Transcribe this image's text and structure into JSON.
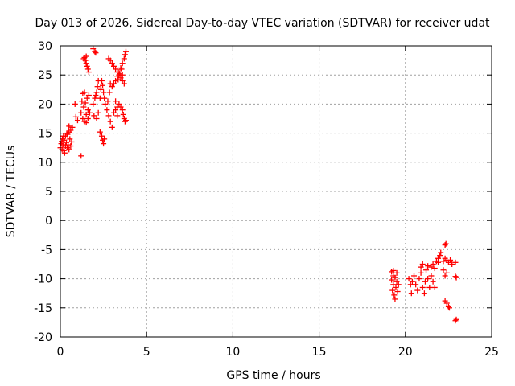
{
  "chart_data": {
    "type": "scatter",
    "title": "Day 013 of 2026, Sidereal Day-to-day VTEC variation (SDTVAR) for receiver udat",
    "xlabel": "GPS time / hours",
    "ylabel": "SDTVAR / TECUs",
    "xlim": [
      0,
      25
    ],
    "ylim": [
      -20,
      30
    ],
    "xticks": [
      "0",
      "5",
      "10",
      "15",
      "20",
      "25"
    ],
    "yticks": [
      "30",
      "25",
      "20",
      "15",
      "10",
      "5",
      "0",
      "-5",
      "-10",
      "-15",
      "-20"
    ],
    "grid": true,
    "marker": "plus",
    "color": "#ff0000",
    "series": [
      {
        "name": "SDTVAR",
        "points": [
          [
            0.0,
            12.5
          ],
          [
            0.05,
            13.2
          ],
          [
            0.1,
            12.2
          ],
          [
            0.12,
            14.0
          ],
          [
            0.15,
            13.0
          ],
          [
            0.2,
            12.0
          ],
          [
            0.22,
            13.8
          ],
          [
            0.25,
            11.6
          ],
          [
            0.3,
            12.8
          ],
          [
            0.3,
            14.5
          ],
          [
            0.35,
            13.4
          ],
          [
            0.4,
            12.5
          ],
          [
            0.42,
            14.8
          ],
          [
            0.45,
            13.0
          ],
          [
            0.5,
            15.2
          ],
          [
            0.5,
            12.2
          ],
          [
            0.55,
            14.0
          ],
          [
            0.6,
            15.5
          ],
          [
            0.6,
            12.8
          ],
          [
            0.65,
            13.5
          ],
          [
            0.7,
            16.0
          ],
          [
            0.5,
            16.2
          ],
          [
            0.38,
            15.0
          ],
          [
            0.18,
            14.5
          ],
          [
            0.08,
            13.6
          ],
          [
            0.85,
            20.0
          ],
          [
            0.9,
            17.8
          ],
          [
            1.0,
            17.2
          ],
          [
            1.2,
            11.1
          ],
          [
            1.2,
            18.5
          ],
          [
            1.3,
            17.5
          ],
          [
            1.35,
            19.5
          ],
          [
            1.4,
            17.0
          ],
          [
            1.45,
            20.2
          ],
          [
            1.5,
            18.2
          ],
          [
            1.55,
            21.0
          ],
          [
            1.6,
            19.0
          ],
          [
            1.65,
            21.5
          ],
          [
            1.3,
            21.8
          ],
          [
            1.4,
            22.0
          ],
          [
            1.25,
            20.5
          ],
          [
            1.5,
            16.8
          ],
          [
            1.6,
            17.5
          ],
          [
            1.7,
            18.5
          ],
          [
            1.4,
            28.0
          ],
          [
            1.45,
            27.5
          ],
          [
            1.5,
            27.0
          ],
          [
            1.55,
            26.5
          ],
          [
            1.6,
            26.0
          ],
          [
            1.65,
            25.5
          ],
          [
            1.5,
            28.2
          ],
          [
            1.35,
            27.8
          ],
          [
            1.9,
            29.5
          ],
          [
            2.0,
            29.0
          ],
          [
            2.05,
            28.8
          ],
          [
            1.9,
            20.0
          ],
          [
            2.0,
            21.0
          ],
          [
            2.1,
            22.0
          ],
          [
            2.15,
            23.0
          ],
          [
            2.2,
            24.0
          ],
          [
            2.05,
            21.5
          ],
          [
            1.95,
            18.0
          ],
          [
            2.1,
            17.5
          ],
          [
            2.2,
            18.5
          ],
          [
            2.3,
            21.0
          ],
          [
            2.35,
            22.5
          ],
          [
            2.4,
            24.0
          ],
          [
            2.45,
            23.2
          ],
          [
            2.5,
            22.0
          ],
          [
            2.55,
            21.0
          ],
          [
            2.6,
            20.0
          ],
          [
            2.3,
            15.2
          ],
          [
            2.4,
            14.5
          ],
          [
            2.45,
            13.8
          ],
          [
            2.5,
            13.2
          ],
          [
            2.55,
            14.0
          ],
          [
            2.7,
            19.0
          ],
          [
            2.8,
            18.0
          ],
          [
            2.9,
            17.0
          ],
          [
            3.0,
            16.0
          ],
          [
            2.75,
            20.5
          ],
          [
            2.85,
            22.0
          ],
          [
            2.9,
            23.5
          ],
          [
            2.8,
            27.8
          ],
          [
            2.9,
            27.5
          ],
          [
            3.0,
            27.0
          ],
          [
            3.1,
            26.5
          ],
          [
            3.2,
            26.0
          ],
          [
            3.3,
            25.5
          ],
          [
            3.4,
            25.0
          ],
          [
            3.5,
            24.5
          ],
          [
            3.6,
            24.0
          ],
          [
            3.7,
            23.5
          ],
          [
            3.0,
            23.0
          ],
          [
            3.1,
            23.5
          ],
          [
            3.2,
            24.0
          ],
          [
            3.3,
            24.8
          ],
          [
            3.4,
            25.5
          ],
          [
            3.5,
            26.2
          ],
          [
            3.6,
            27.0
          ],
          [
            3.7,
            27.8
          ],
          [
            3.75,
            28.5
          ],
          [
            3.8,
            29.0
          ],
          [
            3.45,
            25.2
          ],
          [
            3.55,
            26.0
          ],
          [
            3.6,
            25.0
          ],
          [
            3.35,
            24.2
          ],
          [
            3.1,
            18.5
          ],
          [
            3.2,
            19.0
          ],
          [
            3.3,
            19.5
          ],
          [
            3.4,
            20.0
          ],
          [
            3.5,
            19.5
          ],
          [
            3.6,
            19.0
          ],
          [
            3.65,
            18.2
          ],
          [
            3.7,
            17.5
          ],
          [
            3.75,
            17.0
          ],
          [
            3.8,
            17.2
          ],
          [
            3.2,
            20.5
          ],
          [
            3.3,
            18.0
          ],
          [
            19.2,
            -8.8
          ],
          [
            19.3,
            -9.5
          ],
          [
            19.2,
            -10.2
          ],
          [
            19.3,
            -11.0
          ],
          [
            19.25,
            -12.0
          ],
          [
            19.35,
            -12.8
          ],
          [
            19.4,
            -13.5
          ],
          [
            19.45,
            -11.5
          ],
          [
            19.5,
            -9.0
          ],
          [
            19.5,
            -10.5
          ],
          [
            19.55,
            -12.2
          ],
          [
            19.6,
            -11.0
          ],
          [
            19.4,
            -9.8
          ],
          [
            19.3,
            -8.6
          ],
          [
            20.2,
            -10.0
          ],
          [
            20.3,
            -11.0
          ],
          [
            20.35,
            -12.5
          ],
          [
            20.4,
            -10.5
          ],
          [
            20.5,
            -9.5
          ],
          [
            20.6,
            -11.0
          ],
          [
            20.7,
            -12.0
          ],
          [
            20.8,
            -10.0
          ],
          [
            20.9,
            -9.0
          ],
          [
            21.0,
            -11.5
          ],
          [
            21.1,
            -12.5
          ],
          [
            21.15,
            -10.5
          ],
          [
            21.2,
            -8.5
          ],
          [
            21.3,
            -10.0
          ],
          [
            21.4,
            -11.5
          ],
          [
            21.5,
            -9.5
          ],
          [
            21.6,
            -10.5
          ],
          [
            21.7,
            -11.5
          ],
          [
            20.9,
            -8.0
          ],
          [
            21.0,
            -7.5
          ],
          [
            21.3,
            -7.8
          ],
          [
            21.5,
            -8.0
          ],
          [
            21.7,
            -8.2
          ],
          [
            21.6,
            -7.5
          ],
          [
            21.8,
            -7.0
          ],
          [
            21.9,
            -6.5
          ],
          [
            22.0,
            -6.0
          ],
          [
            22.05,
            -5.5
          ],
          [
            21.9,
            -7.2
          ],
          [
            22.2,
            -8.5
          ],
          [
            22.3,
            -9.5
          ],
          [
            22.4,
            -9.0
          ],
          [
            22.2,
            -7.0
          ],
          [
            22.3,
            -6.5
          ],
          [
            22.4,
            -6.8
          ],
          [
            22.5,
            -7.2
          ],
          [
            22.6,
            -6.8
          ],
          [
            22.7,
            -7.5
          ],
          [
            22.9,
            -7.2
          ],
          [
            22.3,
            -4.2
          ],
          [
            22.35,
            -4.0
          ],
          [
            22.3,
            -13.8
          ],
          [
            22.4,
            -14.2
          ],
          [
            22.5,
            -14.8
          ],
          [
            22.55,
            -15.0
          ],
          [
            22.9,
            -9.6
          ],
          [
            22.95,
            -9.8
          ],
          [
            22.9,
            -17.2
          ],
          [
            22.95,
            -17.0
          ]
        ]
      }
    ]
  }
}
